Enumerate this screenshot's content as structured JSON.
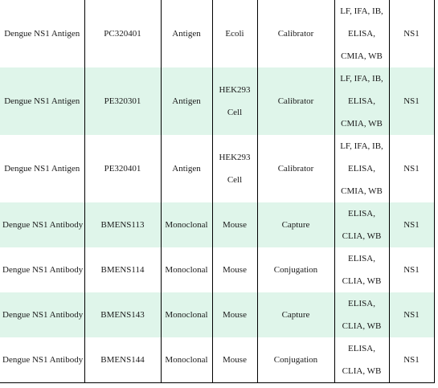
{
  "rows": [
    {
      "product": "Dengue NS1 Antigen",
      "cat_no": "PC320401",
      "type": "Antigen",
      "host": [
        "Ecoli"
      ],
      "application": "Calibrator",
      "assays": [
        "LF, IFA, IB,",
        "ELISA,",
        "CMIA, WB"
      ],
      "target": "NS1"
    },
    {
      "product": "Dengue NS1 Antigen",
      "cat_no": "PE320301",
      "type": "Antigen",
      "host": [
        "HEK293",
        "Cell"
      ],
      "application": "Calibrator",
      "assays": [
        "LF, IFA, IB,",
        "ELISA,",
        "CMIA, WB"
      ],
      "target": "NS1"
    },
    {
      "product": "Dengue NS1 Antigen",
      "cat_no": "PE320401",
      "type": "Antigen",
      "host": [
        "HEK293",
        "Cell"
      ],
      "application": "Calibrator",
      "assays": [
        "LF, IFA, IB,",
        "ELISA,",
        "CMIA, WB"
      ],
      "target": "NS1"
    },
    {
      "product": "Dengue NS1 Antibody",
      "cat_no": "BMENS113",
      "type": "Monoclonal",
      "host": [
        "Mouse"
      ],
      "application": "Capture",
      "assays": [
        "ELISA,",
        "CLIA, WB"
      ],
      "target": "NS1"
    },
    {
      "product": "Dengue NS1 Antibody",
      "cat_no": "BMENS114",
      "type": "Monoclonal",
      "host": [
        "Mouse"
      ],
      "application": "Conjugation",
      "assays": [
        "ELISA,",
        "CLIA, WB"
      ],
      "target": "NS1"
    },
    {
      "product": "Dengue NS1 Antibody",
      "cat_no": "BMENS143",
      "type": "Monoclonal",
      "host": [
        "Mouse"
      ],
      "application": "Capture",
      "assays": [
        "ELISA,",
        "CLIA, WB"
      ],
      "target": "NS1"
    },
    {
      "product": "Dengue NS1 Antibody",
      "cat_no": "BMENS144",
      "type": "Monoclonal",
      "host": [
        "Mouse"
      ],
      "application": "Conjugation",
      "assays": [
        "ELISA,",
        "CLIA, WB"
      ],
      "target": "NS1"
    }
  ],
  "colors": {
    "stripe": "#dff5ea",
    "grid_line": "#000000",
    "text": "#1a1a1a"
  }
}
